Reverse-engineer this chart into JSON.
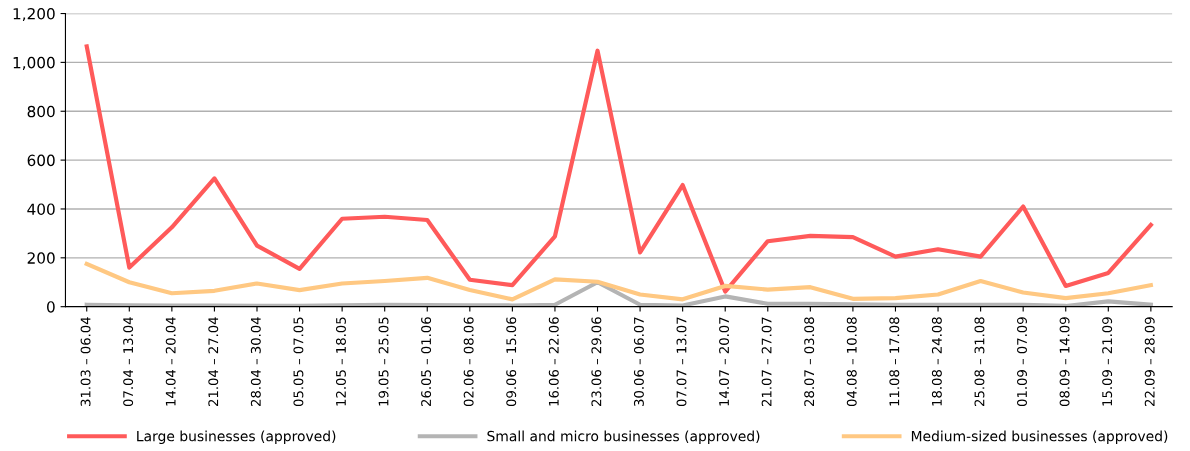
{
  "chart_data": {
    "type": "line",
    "categories": [
      "31.03 – 06.04",
      "07.04 – 13.04",
      "14.04 – 20.04",
      "21.04 – 27.04",
      "28.04 – 30.04",
      "05.05 – 07.05",
      "12.05 – 18.05",
      "19.05 – 25.05",
      "26.05 – 01.06",
      "02.06 – 08.06",
      "09.06 – 15.06",
      "16.06 – 22.06",
      "23.06 – 29.06",
      "30.06 – 06.07",
      "07.07 – 13.07",
      "14.07 – 20.07",
      "21.07 – 27.07",
      "28.07 – 03.08",
      "04.08 – 10.08",
      "11.08 – 17.08",
      "18.08 – 24.08",
      "25.08 – 31.08",
      "01.09 – 07.09",
      "08.09 – 14.09",
      "15.09 – 21.09",
      "22.09 – 28.09"
    ],
    "series": [
      {
        "name": "Large businesses (approved)",
        "color": "#ff5a5a",
        "values": [
          1065,
          160,
          325,
          525,
          250,
          155,
          360,
          368,
          355,
          110,
          88,
          288,
          1048,
          222,
          498,
          62,
          268,
          290,
          285,
          205,
          235,
          205,
          410,
          85,
          138,
          335
        ]
      },
      {
        "name": "Small and micro businesses (approved)",
        "color": "#b4b4b4",
        "values": [
          8,
          6,
          5,
          5,
          3,
          3,
          6,
          8,
          7,
          6,
          5,
          8,
          100,
          8,
          5,
          42,
          12,
          12,
          10,
          8,
          8,
          8,
          8,
          3,
          22,
          8
        ]
      },
      {
        "name": "Medium-sized businesses (approved)",
        "color": "#ffc882",
        "values": [
          175,
          100,
          55,
          65,
          95,
          68,
          95,
          105,
          118,
          68,
          30,
          112,
          102,
          50,
          30,
          85,
          70,
          80,
          32,
          35,
          50,
          105,
          58,
          35,
          55,
          88
        ]
      }
    ],
    "ylim": [
      0,
      1200
    ],
    "yticks": [
      0,
      {
        "value": 200,
        "label": "200"
      },
      {
        "value": 400,
        "label": "400"
      },
      {
        "value": 600,
        "label": "600"
      },
      {
        "value": 800,
        "label": "800"
      },
      {
        "value": 1000,
        "label": "1,000"
      },
      {
        "value": 1200,
        "label": "1,200"
      }
    ],
    "grid": "y",
    "legend": "bottom",
    "marker": "none",
    "line_style": "solid"
  }
}
